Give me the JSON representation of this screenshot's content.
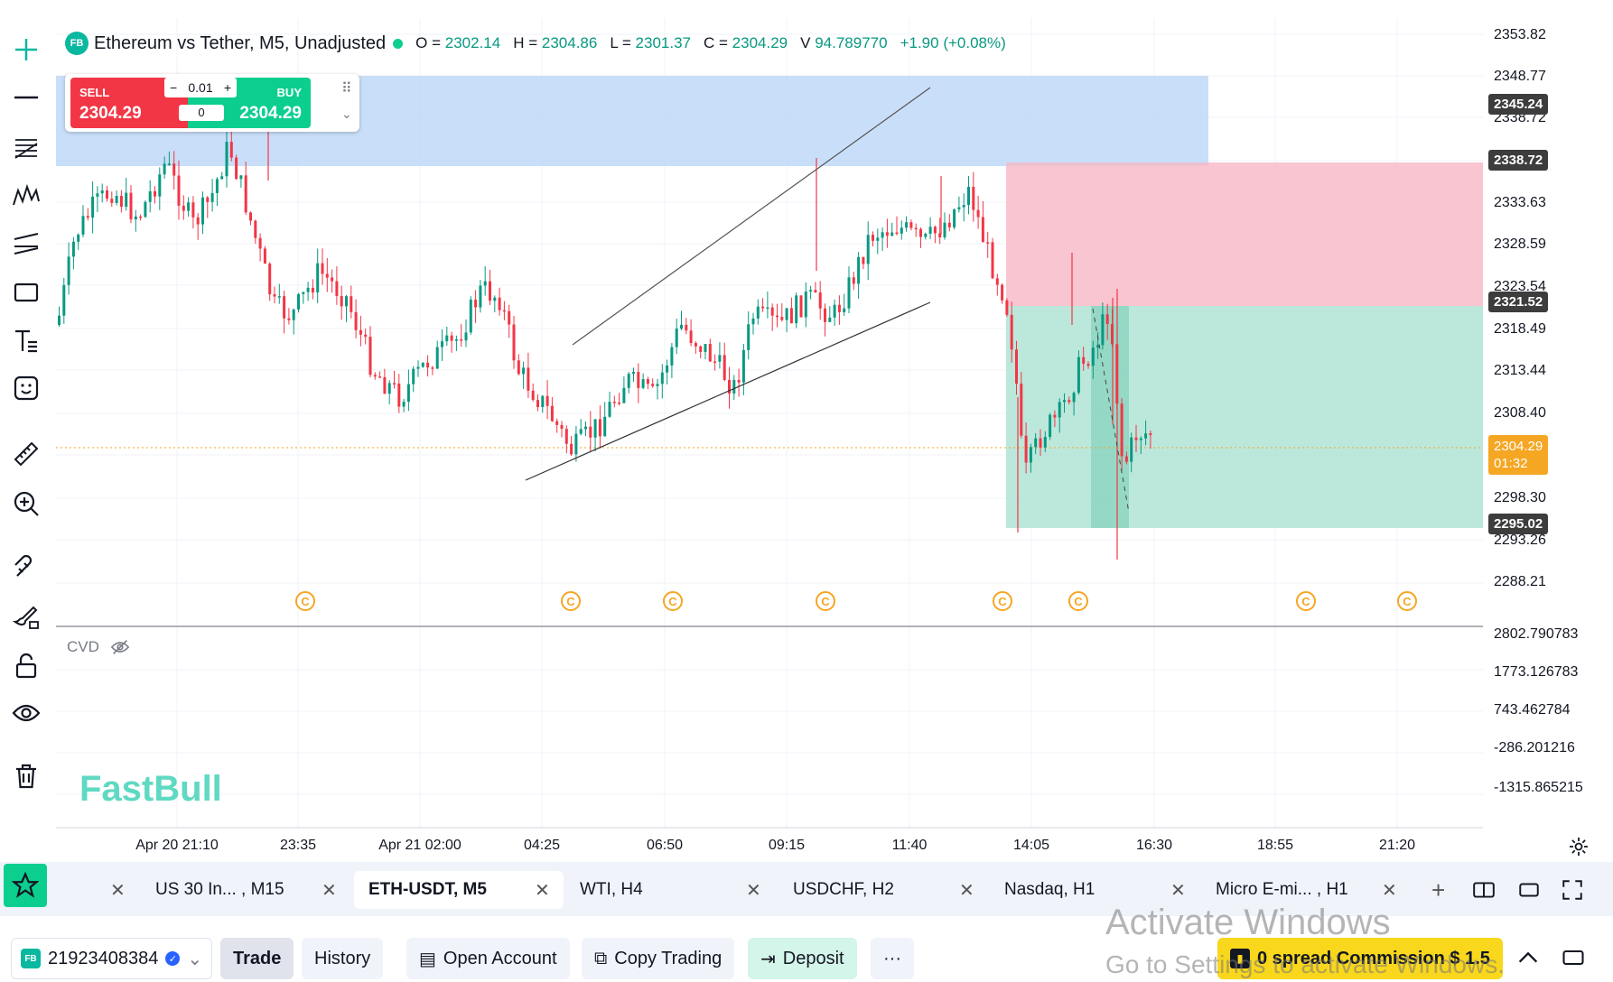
{
  "header": {
    "logo": "FB",
    "symbol_title": "Ethereum vs Tether, M5, Unadjusted",
    "o_label": "O =",
    "o_value": "2302.14",
    "h_label": "H =",
    "h_value": "2304.86",
    "l_label": "L =",
    "l_value": "2301.37",
    "c_label": "C =",
    "c_value": "2304.29",
    "v_label": "V",
    "v_value": "94.789770",
    "change": "+1.90 (+0.08%)"
  },
  "trade_panel": {
    "sell_label": "SELL",
    "sell_price": "2304.29",
    "buy_label": "BUY",
    "buy_price": "2304.29",
    "lot_size": "0.01",
    "quantity": "0",
    "minus": "−",
    "plus": "+"
  },
  "price_axis": {
    "labels": [
      "2353.82",
      "2348.77",
      "2338.72",
      "2333.63",
      "2328.59",
      "2323.54",
      "2318.49",
      "2313.44",
      "2308.40",
      "2298.30",
      "2293.26",
      "2288.21"
    ],
    "tags": {
      "tag1": "2345.24",
      "tag2": "2338.72",
      "tag3": "2321.52",
      "tag4": "2295.02"
    },
    "current_price": "2304.29",
    "countdown": "01:32"
  },
  "cvd_axis": {
    "labels": [
      "2802.790783",
      "1773.126783",
      "743.462784",
      "-286.201216",
      "-1315.865215"
    ]
  },
  "indicator": {
    "cvd_label": "CVD"
  },
  "brand": "FastBull",
  "time_axis": {
    "labels": [
      "Apr 20 21:10",
      "23:35",
      "Apr 21 02:00",
      "04:25",
      "06:50",
      "09:15",
      "11:40",
      "14:05",
      "16:30",
      "18:55",
      "21:20"
    ]
  },
  "tabs": [
    {
      "label": "US 30 In... , M15"
    },
    {
      "label": "ETH-USDT, M5"
    },
    {
      "label": "WTI, H4"
    },
    {
      "label": "USDCHF, H2"
    },
    {
      "label": "Nasdaq, H1"
    },
    {
      "label": "Micro E-mi... , H1"
    }
  ],
  "bottom": {
    "account_id": "21923408384",
    "trade": "Trade",
    "history": "History",
    "open_account": "Open Account",
    "copy_trading": "Copy Trading",
    "deposit": "Deposit",
    "more": "···",
    "promo": "0 spread Commission $ 1.5"
  },
  "watermark": {
    "line1": "Activate Windows",
    "line2": "Go to Settings to activate Windows."
  },
  "colors": {
    "up": "#089981",
    "down": "#f23645",
    "sell": "#f23645",
    "buy": "#0ccf8f",
    "accent": "#0ab8a0",
    "current_price": "#f5a623"
  },
  "icons": {
    "toolbar": [
      "crosshair-icon",
      "trend-line-icon",
      "fib-icon",
      "pattern-icon",
      "parallel-channel-icon",
      "rectangle-icon",
      "text-icon",
      "emoji-icon",
      "ruler-icon",
      "zoom-in-icon",
      "magnet-icon",
      "brush-lock-icon",
      "lock-icon",
      "eye-icon",
      "trash-icon"
    ],
    "favorite": "star-icon",
    "settings": "gear-icon"
  }
}
